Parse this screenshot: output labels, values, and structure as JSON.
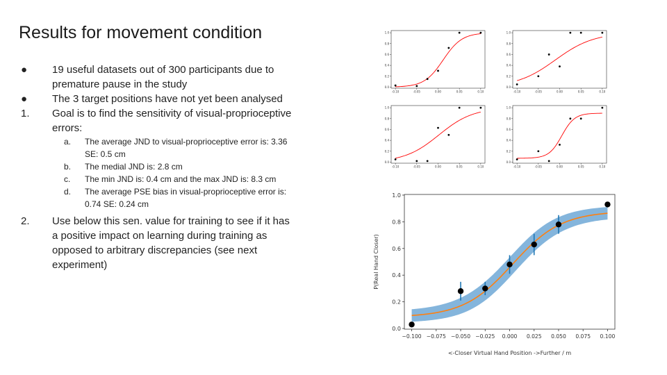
{
  "slide": {
    "title": "Results for movement condition",
    "bullets": [
      {
        "marker": "●",
        "text": "19 useful datasets out of 300 participants due to premature pause in the study"
      },
      {
        "marker": "●",
        "text": "The 3 target positions have not yet been analysed"
      },
      {
        "marker": "1.",
        "text": "Goal is to find the sensitivity of visual-proprioceptive errors:"
      },
      {
        "marker": "2.",
        "text": "Use below this sen. value for training to see if it has a positive impact on learning during training as opposed to arbitrary discrepancies (see next experiment)"
      }
    ],
    "subitems": [
      {
        "marker": "a.",
        "text": "The average  JND to visual-proprioceptive  error is:  3.36 SE: 0.5 cm"
      },
      {
        "marker": "b.",
        "text": "The medial JND is:  2.8 cm"
      },
      {
        "marker": "c.",
        "text": "The min JND is:  0.4 cm and the max JND is:  8.3 cm"
      },
      {
        "marker": "d.",
        "text": "The average  PSE bias in visual-proprioceptive error is:  0.74 SE: 0.24 cm"
      }
    ]
  },
  "colors": {
    "fit_small": "#ff0000",
    "points": "#000000",
    "band": "#6fa8d6",
    "mean_curve": "#ff7f0e",
    "errorbar": "#1f77b4",
    "axis": "#333333"
  },
  "chart_data": [
    {
      "type": "scatter",
      "x": [
        -0.1,
        -0.05,
        -0.025,
        0,
        0.025,
        0.05,
        0.1
      ],
      "y": [
        0.03,
        0.02,
        0.15,
        0.3,
        0.72,
        1.0,
        1.0
      ],
      "fit": {
        "pse": 0.012,
        "slope": 0.022
      },
      "xticks": [
        "-0.10",
        "-0.05",
        "0.00",
        "0.05",
        "0.10"
      ],
      "yticks": [
        "0.0",
        "0.2",
        "0.4",
        "0.6",
        "0.8",
        "1.0"
      ],
      "xlim": [
        -0.11,
        0.11
      ],
      "ylim": [
        -0.02,
        1.04
      ]
    },
    {
      "type": "scatter",
      "x": [
        -0.1,
        -0.05,
        -0.025,
        0,
        0.025,
        0.05,
        0.1
      ],
      "y": [
        0.05,
        0.2,
        0.6,
        0.38,
        1.0,
        1.0,
        1.0
      ],
      "fit": {
        "pse": -0.01,
        "slope": 0.045
      },
      "xticks": [
        "-0.10",
        "-0.05",
        "0.00",
        "0.05",
        "0.10"
      ],
      "yticks": [
        "0.0",
        "0.2",
        "0.4",
        "0.6",
        "0.8",
        "1.0"
      ],
      "xlim": [
        -0.11,
        0.11
      ],
      "ylim": [
        -0.02,
        1.04
      ]
    },
    {
      "type": "scatter",
      "x": [
        -0.1,
        -0.05,
        -0.025,
        0,
        0.025,
        0.05,
        0.1
      ],
      "y": [
        0.05,
        0.02,
        0.02,
        0.63,
        0.5,
        1.0,
        1.0
      ],
      "fit": {
        "pse": 0.002,
        "slope": 0.04
      },
      "xticks": [
        "-0.10",
        "-0.05",
        "0.00",
        "0.05",
        "0.10"
      ],
      "yticks": [
        "0.0",
        "0.2",
        "0.4",
        "0.6",
        "0.8",
        "1.0"
      ],
      "xlim": [
        -0.11,
        0.11
      ],
      "ylim": [
        -0.02,
        1.04
      ]
    },
    {
      "type": "scatter",
      "x": [
        -0.1,
        -0.05,
        -0.025,
        0,
        0.025,
        0.05,
        0.1
      ],
      "y": [
        0.05,
        0.2,
        0.02,
        0.32,
        0.8,
        0.8,
        1.0
      ],
      "fit": {
        "pse": 0.005,
        "slope": 0.015,
        "lower": 0.07,
        "upper": 0.9
      },
      "xticks": [
        "-0.10",
        "-0.05",
        "0.00",
        "0.05",
        "0.10"
      ],
      "yticks": [
        "0.0",
        "0.2",
        "0.4",
        "0.6",
        "0.8",
        "1.0"
      ],
      "xlim": [
        -0.11,
        0.11
      ],
      "ylim": [
        -0.02,
        1.04
      ]
    },
    {
      "type": "scatter",
      "x": [
        -0.1,
        -0.05,
        -0.025,
        0.0,
        0.025,
        0.05,
        0.1
      ],
      "y": [
        0.03,
        0.28,
        0.3,
        0.48,
        0.63,
        0.78,
        0.93
      ],
      "err": [
        0.0,
        0.07,
        0.05,
        0.07,
        0.08,
        0.07,
        0.0
      ],
      "curve": {
        "lower": 0.085,
        "upper": 0.88,
        "pse": 0.003,
        "slope": 0.025
      },
      "band_halfwidth": 0.075,
      "xlabel": "<-Closer Virtual Hand Position ->Further / m",
      "ylabel": "P(Real Hand Closer)",
      "xticks": [
        "−0.100",
        "−0.075",
        "−0.050",
        "−0.025",
        "0.000",
        "0.025",
        "0.050",
        "0.075",
        "0.100"
      ],
      "yticks": [
        "0.0",
        "0.2",
        "0.4",
        "0.6",
        "0.8",
        "1.0"
      ],
      "xlim": [
        -0.1075,
        0.1075
      ],
      "ylim": [
        -0.005,
        1.005
      ]
    }
  ]
}
